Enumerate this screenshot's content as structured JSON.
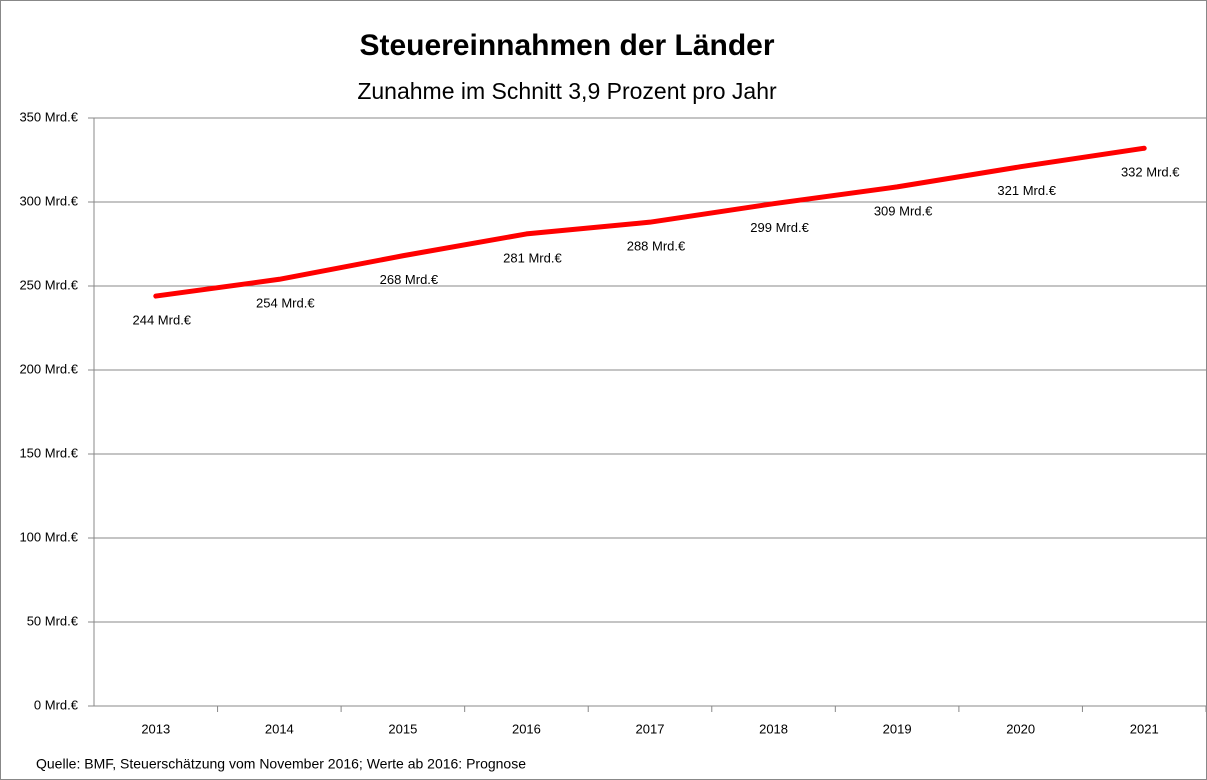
{
  "chart_data": {
    "type": "line",
    "title": "Steuereinnahmen der Länder",
    "subtitle": "Zunahme im Schnitt 3,9 Prozent pro Jahr",
    "source": "Quelle: BMF, Steuerschätzung vom November 2016; Werte ab 2016:  Prognose",
    "categories": [
      "2013",
      "2014",
      "2015",
      "2016",
      "2017",
      "2018",
      "2019",
      "2020",
      "2021"
    ],
    "series": [
      {
        "name": "Steuereinnahmen",
        "color": "#ff0000",
        "values": [
          244,
          254,
          268,
          281,
          288,
          299,
          309,
          321,
          332
        ],
        "value_labels": [
          "244 Mrd.€",
          "254 Mrd.€",
          "268 Mrd.€",
          "281 Mrd.€",
          "288 Mrd.€",
          "299 Mrd.€",
          "309 Mrd.€",
          "321 Mrd.€",
          "332 Mrd.€"
        ]
      }
    ],
    "ylim": [
      0,
      350
    ],
    "yticks": [
      {
        "value": 0,
        "label": "0 Mrd.€"
      },
      {
        "value": 50,
        "label": "50 Mrd.€"
      },
      {
        "value": 100,
        "label": "100 Mrd.€"
      },
      {
        "value": 150,
        "label": "150 Mrd.€"
      },
      {
        "value": 200,
        "label": "200 Mrd.€"
      },
      {
        "value": 250,
        "label": "250 Mrd.€"
      },
      {
        "value": 300,
        "label": "300 Mrd.€"
      },
      {
        "value": 350,
        "label": "350 Mrd.€"
      }
    ],
    "grid": true
  }
}
